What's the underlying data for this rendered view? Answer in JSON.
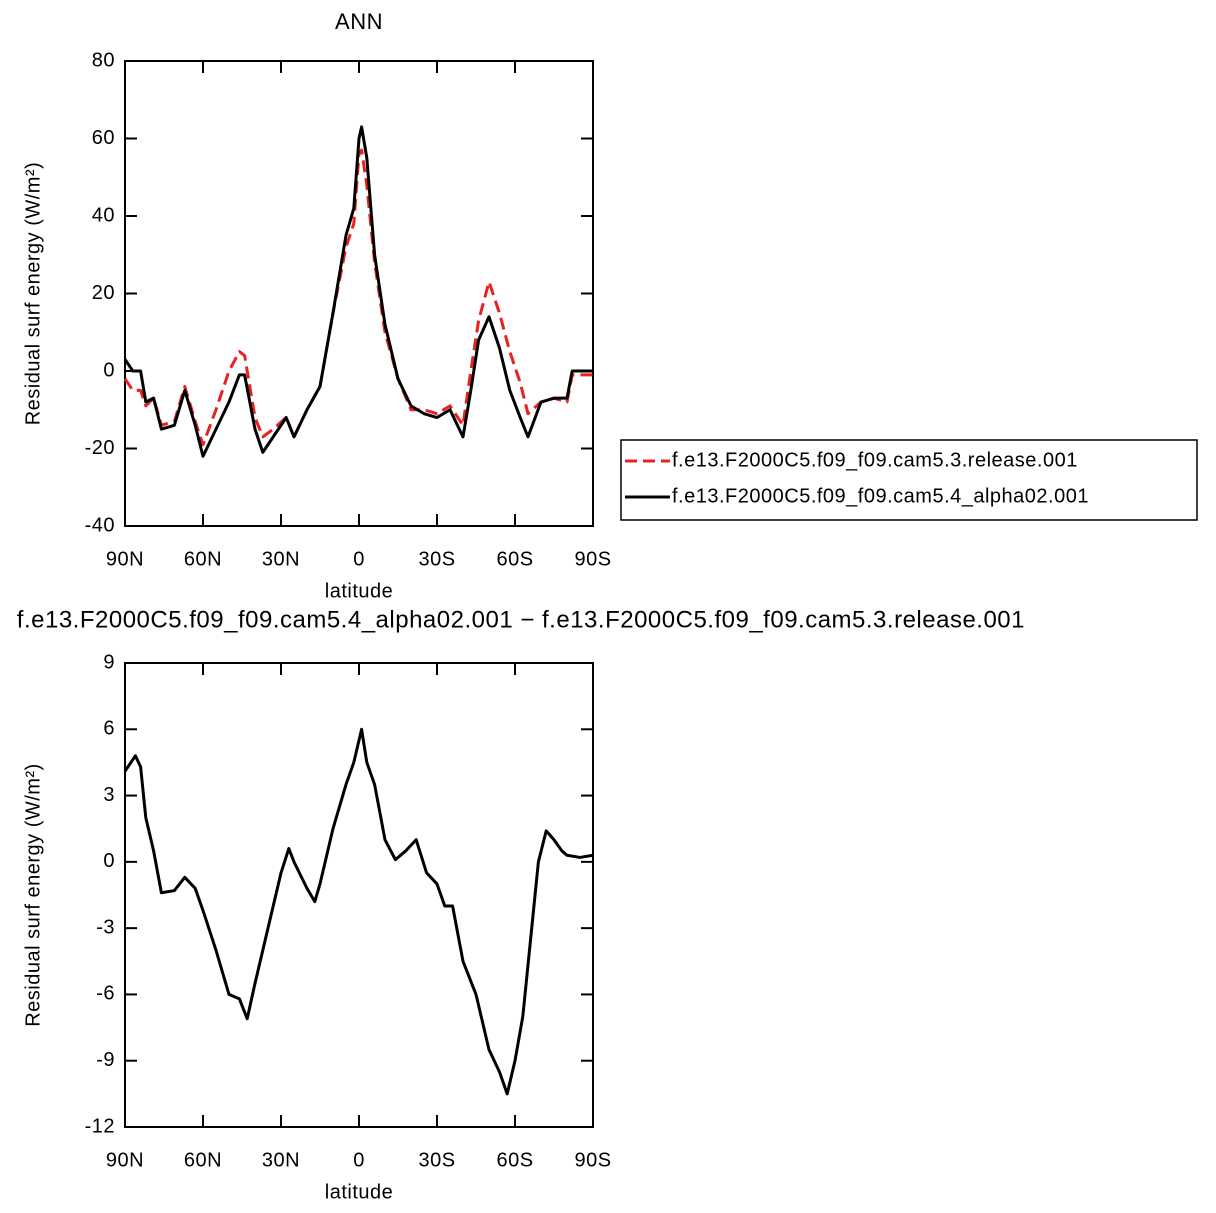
{
  "chart_data": [
    {
      "type": "line",
      "title": "ANN",
      "xlabel": "latitude",
      "ylabel": "Residual surf energy (W/m²)",
      "x": [
        90,
        87,
        84,
        82,
        79,
        76,
        71,
        67,
        63,
        60,
        55,
        50,
        46,
        44,
        40,
        37,
        33,
        28,
        25,
        20,
        15,
        10,
        5,
        2,
        0,
        -1,
        -3,
        -6,
        -10,
        -15,
        -20,
        -25,
        -30,
        -35,
        -40,
        -43,
        -46,
        -50,
        -54,
        -58,
        -62,
        -65,
        -70,
        -75,
        -80,
        -82,
        -90
      ],
      "series": [
        {
          "name": "f.e13.F2000C5.f09_f09.cam5.3.release.001",
          "color": "#e8221f",
          "dashed": true,
          "values": [
            -2,
            -5,
            -5,
            -9,
            -7,
            -14,
            -13,
            -4,
            -13,
            -19,
            -10,
            0,
            5,
            4,
            -12,
            -17,
            -15,
            -12,
            -17,
            -10,
            -4,
            15,
            32,
            38,
            56,
            57,
            48,
            28,
            10,
            -2,
            -10,
            -10,
            -11,
            -9,
            -14,
            0,
            13,
            23,
            15,
            5,
            -3,
            -11,
            -8,
            -7,
            -8,
            -1,
            -1
          ]
        },
        {
          "name": "f.e13.F2000C5.f09_f09.cam5.4_alpha02.001",
          "color": "#000000",
          "dashed": false,
          "values": [
            3,
            0,
            0,
            -8,
            -7,
            -15,
            -14,
            -5,
            -14,
            -22,
            -15,
            -8,
            -1,
            -1,
            -15,
            -21,
            -17,
            -12,
            -17,
            -10,
            -4,
            15,
            35,
            42,
            60,
            63,
            55,
            30,
            12,
            -2,
            -9,
            -11,
            -12,
            -10,
            -17,
            -5,
            8,
            14,
            6,
            -5,
            -12,
            -17,
            -8,
            -7,
            -7,
            0,
            0
          ]
        }
      ],
      "xlim": [
        90,
        -90
      ],
      "xticks": [
        {
          "value": 90,
          "label": "90N"
        },
        {
          "value": 60,
          "label": "60N"
        },
        {
          "value": 30,
          "label": "30N"
        },
        0,
        {
          "value": -30,
          "label": "30S"
        },
        {
          "value": -60,
          "label": "60S"
        },
        {
          "value": -90,
          "label": "90S"
        }
      ],
      "ylim": [
        -40,
        80
      ],
      "yticks": [
        -40,
        -20,
        0,
        20,
        40,
        60,
        80
      ],
      "legend": "right"
    },
    {
      "type": "line",
      "title": "f.e13.F2000C5.f09_f09.cam5.4_alpha02.001 − f.e13.F2000C5.f09_f09.cam5.3.release.001",
      "xlabel": "latitude",
      "ylabel": "Residual surf energy (W/m²)",
      "x": [
        90,
        86,
        84,
        82,
        79,
        76,
        71,
        67,
        63,
        60,
        55,
        50,
        46,
        43,
        40,
        35,
        30,
        27,
        25,
        20,
        17,
        15,
        10,
        5,
        2,
        0,
        -1,
        -3,
        -6,
        -10,
        -14,
        -18,
        -22,
        -26,
        -30,
        -33,
        -36,
        -40,
        -45,
        -50,
        -54,
        -57,
        -60,
        -63,
        -66,
        -69,
        -72,
        -75,
        -78,
        -80,
        -85,
        -90
      ],
      "series": [
        {
          "color": "#000000",
          "dashed": false,
          "values": [
            4.1,
            4.8,
            4.3,
            2.0,
            0.5,
            -1.4,
            -1.3,
            -0.7,
            -1.2,
            -2.2,
            -4.0,
            -6.0,
            -6.2,
            -7.1,
            -5.5,
            -3,
            -0.5,
            0.6,
            0,
            -1.2,
            -1.8,
            -1.0,
            1.5,
            3.5,
            4.5,
            5.5,
            6.0,
            4.5,
            3.5,
            1.0,
            0.1,
            0.5,
            1.0,
            -0.5,
            -1.0,
            -2.0,
            -2.0,
            -4.5,
            -6.0,
            -8.5,
            -9.5,
            -10.5,
            -9.0,
            -7,
            -3.5,
            0.0,
            1.4,
            1.0,
            0.5,
            0.3,
            0.2,
            0.3
          ]
        }
      ],
      "xlim": [
        90,
        -90
      ],
      "xticks": [
        {
          "value": 90,
          "label": "90N"
        },
        {
          "value": 60,
          "label": "60N"
        },
        {
          "value": 30,
          "label": "30N"
        },
        0,
        {
          "value": -30,
          "label": "30S"
        },
        {
          "value": -60,
          "label": "60S"
        },
        {
          "value": -90,
          "label": "90S"
        }
      ],
      "ylim": [
        -12,
        9
      ],
      "yticks": [
        -12,
        -9,
        -6,
        -3,
        0,
        3,
        6,
        9
      ]
    }
  ]
}
